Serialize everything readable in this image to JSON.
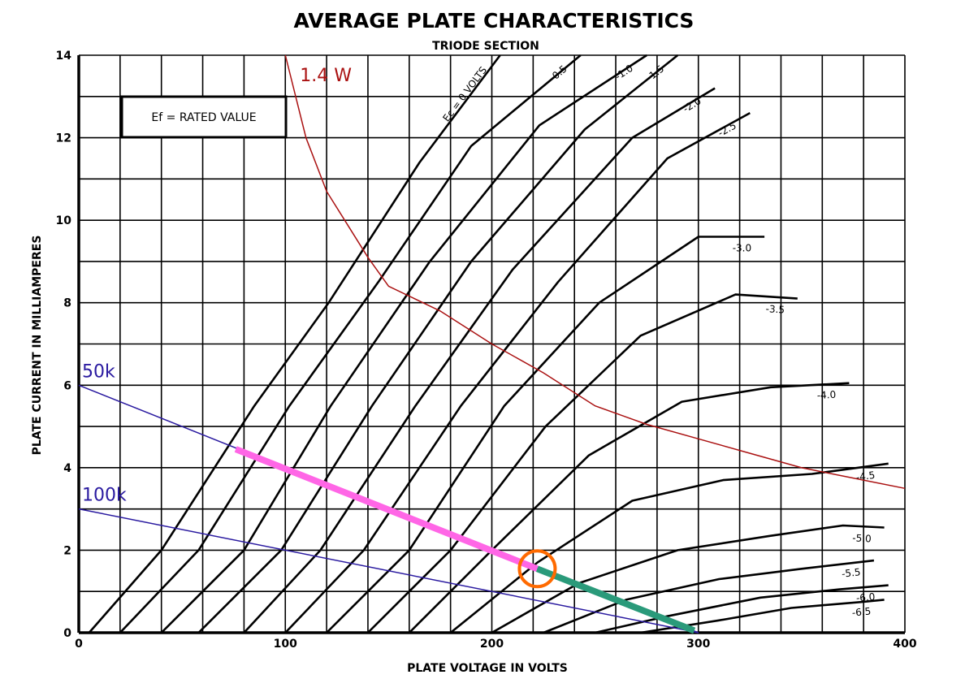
{
  "chart_data": {
    "type": "line",
    "title": "AVERAGE PLATE CHARACTERISTICS",
    "subtitle": "TRIODE SECTION",
    "xlabel": "PLATE VOLTAGE IN VOLTS",
    "ylabel": "PLATE CURRENT IN MILLIAMPERES",
    "xlim": [
      0,
      400
    ],
    "ylim": [
      0,
      14
    ],
    "x_ticks": [
      0,
      100,
      200,
      300,
      400
    ],
    "y_ticks": [
      0,
      2,
      4,
      6,
      8,
      10,
      12,
      14
    ],
    "x_tick_labels": [
      "0",
      "100",
      "200",
      "300",
      "400"
    ],
    "y_tick_labels": [
      "0",
      "2",
      "4",
      "6",
      "8",
      "10",
      "12",
      "14"
    ],
    "grid": true,
    "annotation_box": "Ef = RATED VALUE",
    "grid_curves": [
      {
        "label": "Ec = 0 VOLTS",
        "color": "#000000",
        "points": [
          [
            5,
            0
          ],
          [
            40,
            2
          ],
          [
            85,
            5.5
          ],
          [
            121,
            8
          ],
          [
            165,
            11.4
          ],
          [
            204,
            14
          ]
        ]
      },
      {
        "label": "-0.5",
        "color": "#000000",
        "points": [
          [
            20,
            0
          ],
          [
            58,
            2
          ],
          [
            102,
            5.5
          ],
          [
            145,
            8.5
          ],
          [
            190,
            11.8
          ],
          [
            243,
            14
          ]
        ]
      },
      {
        "label": "-1.0",
        "color": "#000000",
        "points": [
          [
            40,
            0
          ],
          [
            80,
            2
          ],
          [
            122,
            5.5
          ],
          [
            170,
            9
          ],
          [
            223,
            12.3
          ],
          [
            275,
            14
          ]
        ]
      },
      {
        "label": "-1.5",
        "color": "#000000",
        "points": [
          [
            58,
            0
          ],
          [
            98,
            2
          ],
          [
            142,
            5.5
          ],
          [
            190,
            9
          ],
          [
            245,
            12.2
          ],
          [
            290,
            14
          ]
        ]
      },
      {
        "label": "-2.0",
        "color": "#000000",
        "points": [
          [
            80,
            0
          ],
          [
            117,
            2
          ],
          [
            163,
            5.5
          ],
          [
            210,
            8.8
          ],
          [
            268,
            12
          ],
          [
            308,
            13.2
          ]
        ]
      },
      {
        "label": "-2.5",
        "color": "#000000",
        "points": [
          [
            100,
            0
          ],
          [
            138,
            2
          ],
          [
            185,
            5.5
          ],
          [
            232,
            8.5
          ],
          [
            285,
            11.5
          ],
          [
            325,
            12.6
          ]
        ]
      },
      {
        "label": "-3.0",
        "color": "#000000",
        "points": [
          [
            120,
            0
          ],
          [
            160,
            2
          ],
          [
            206,
            5.5
          ],
          [
            252,
            8
          ],
          [
            300,
            9.6
          ],
          [
            332,
            9.6
          ]
        ]
      },
      {
        "label": "-3.5",
        "color": "#000000",
        "points": [
          [
            140,
            0
          ],
          [
            180,
            2
          ],
          [
            226,
            5
          ],
          [
            272,
            7.2
          ],
          [
            318,
            8.2
          ],
          [
            348,
            8.1
          ]
        ]
      },
      {
        "label": "-4.0",
        "color": "#000000",
        "points": [
          [
            160,
            0
          ],
          [
            200,
            2
          ],
          [
            247,
            4.3
          ],
          [
            292,
            5.6
          ],
          [
            335,
            5.95
          ],
          [
            373,
            6.05
          ]
        ]
      },
      {
        "label": "-4.5",
        "color": "#000000",
        "points": [
          [
            180,
            0
          ],
          [
            222,
            1.7
          ],
          [
            268,
            3.2
          ],
          [
            312,
            3.7
          ],
          [
            355,
            3.85
          ],
          [
            392,
            4.1
          ]
        ]
      },
      {
        "label": "-5.0",
        "color": "#000000",
        "points": [
          [
            200,
            0
          ],
          [
            242,
            1.2
          ],
          [
            290,
            2
          ],
          [
            335,
            2.35
          ],
          [
            370,
            2.6
          ],
          [
            390,
            2.55
          ]
        ]
      },
      {
        "label": "-5.5",
        "color": "#000000",
        "points": [
          [
            225,
            0
          ],
          [
            265,
            0.8
          ],
          [
            310,
            1.3
          ],
          [
            350,
            1.55
          ],
          [
            385,
            1.75
          ]
        ]
      },
      {
        "label": "-6.0",
        "color": "#000000",
        "points": [
          [
            250,
            0
          ],
          [
            285,
            0.4
          ],
          [
            330,
            0.85
          ],
          [
            368,
            1.05
          ],
          [
            392,
            1.15
          ]
        ]
      },
      {
        "label": "-6.5",
        "color": "#000000",
        "points": [
          [
            272,
            0
          ],
          [
            310,
            0.3
          ],
          [
            345,
            0.6
          ],
          [
            380,
            0.75
          ],
          [
            390,
            0.8
          ]
        ]
      }
    ],
    "overlay_series": [
      {
        "name": "1.4 W",
        "color": "#aa1111",
        "width": 1.5,
        "label_color": "#aa1111",
        "points": [
          [
            100,
            14
          ],
          [
            110,
            12
          ],
          [
            120,
            10.7
          ],
          [
            130,
            9.9
          ],
          [
            140,
            9.1
          ],
          [
            150,
            8.4
          ],
          [
            175,
            7.8
          ],
          [
            200,
            7
          ],
          [
            225,
            6.3
          ],
          [
            250,
            5.5
          ],
          [
            275,
            5.05
          ],
          [
            300,
            4.7
          ],
          [
            325,
            4.35
          ],
          [
            350,
            4.0
          ],
          [
            375,
            3.75
          ],
          [
            400,
            3.5
          ]
        ]
      },
      {
        "name": "50k",
        "color": "#2a1aa0",
        "width": 1.5,
        "label_color": "#2a1aa0",
        "points": [
          [
            0,
            6
          ],
          [
            300,
            0
          ]
        ]
      },
      {
        "name": "100k",
        "color": "#2a1aa0",
        "width": 1.5,
        "label_color": "#2a1aa0",
        "points": [
          [
            0,
            3
          ],
          [
            300,
            0
          ]
        ]
      }
    ],
    "highlight_segments": [
      {
        "color": "#ff66e6",
        "width": 8,
        "points": [
          [
            76,
            4.45
          ],
          [
            222,
            1.55
          ]
        ]
      },
      {
        "color": "#2a9a7a",
        "width": 8,
        "points": [
          [
            222,
            1.55
          ],
          [
            298,
            0.05
          ]
        ]
      }
    ],
    "marker": {
      "color": "#ff6a00",
      "point": [
        222,
        1.55
      ],
      "shape": "circle"
    }
  }
}
